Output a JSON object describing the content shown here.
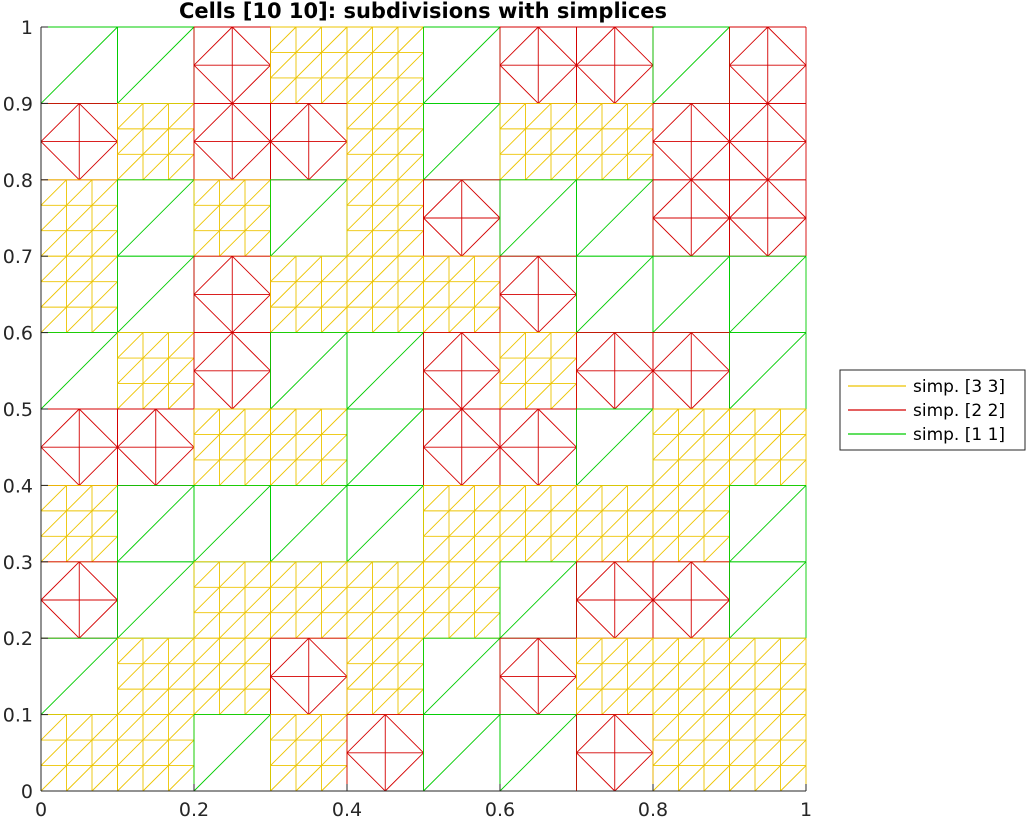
{
  "chart_data": {
    "type": "mesh",
    "title": "Cells [10 10]: subdivisions with simplices",
    "xlabel": "",
    "ylabel": "",
    "xlim": [
      0,
      1
    ],
    "ylim": [
      0,
      1
    ],
    "xticks": [
      "0",
      "0.2",
      "0.4",
      "0.6",
      "0.8",
      "1"
    ],
    "yticks": [
      "0",
      "0.1",
      "0.2",
      "0.3",
      "0.4",
      "0.5",
      "0.6",
      "0.7",
      "0.8",
      "0.9",
      "1"
    ],
    "grid": false,
    "legend_position": "outside-right",
    "cells": [
      10,
      10
    ],
    "series": [
      {
        "name": "simp. [3  3]",
        "subdivision": 3,
        "color": "#EDC400"
      },
      {
        "name": "simp. [2  2]",
        "subdivision": 2,
        "color": "#D40000"
      },
      {
        "name": "simp. [1  1]",
        "subdivision": 1,
        "color": "#00CC00"
      }
    ],
    "cell_subdivisions_top_to_bottom": [
      [
        1,
        1,
        2,
        3,
        3,
        1,
        2,
        2,
        1,
        2
      ],
      [
        2,
        3,
        2,
        2,
        3,
        1,
        3,
        3,
        2,
        2
      ],
      [
        3,
        1,
        3,
        1,
        3,
        2,
        1,
        1,
        2,
        2
      ],
      [
        3,
        1,
        2,
        3,
        3,
        3,
        2,
        1,
        1,
        1
      ],
      [
        1,
        3,
        2,
        1,
        1,
        2,
        3,
        2,
        2,
        1
      ],
      [
        2,
        2,
        3,
        3,
        1,
        2,
        2,
        1,
        3,
        3
      ],
      [
        3,
        1,
        1,
        1,
        1,
        3,
        3,
        3,
        3,
        1
      ],
      [
        2,
        1,
        3,
        3,
        3,
        3,
        1,
        2,
        2,
        1
      ],
      [
        1,
        3,
        3,
        2,
        3,
        1,
        2,
        3,
        3,
        3
      ],
      [
        3,
        3,
        1,
        3,
        2,
        1,
        1,
        2,
        3,
        3
      ]
    ]
  }
}
